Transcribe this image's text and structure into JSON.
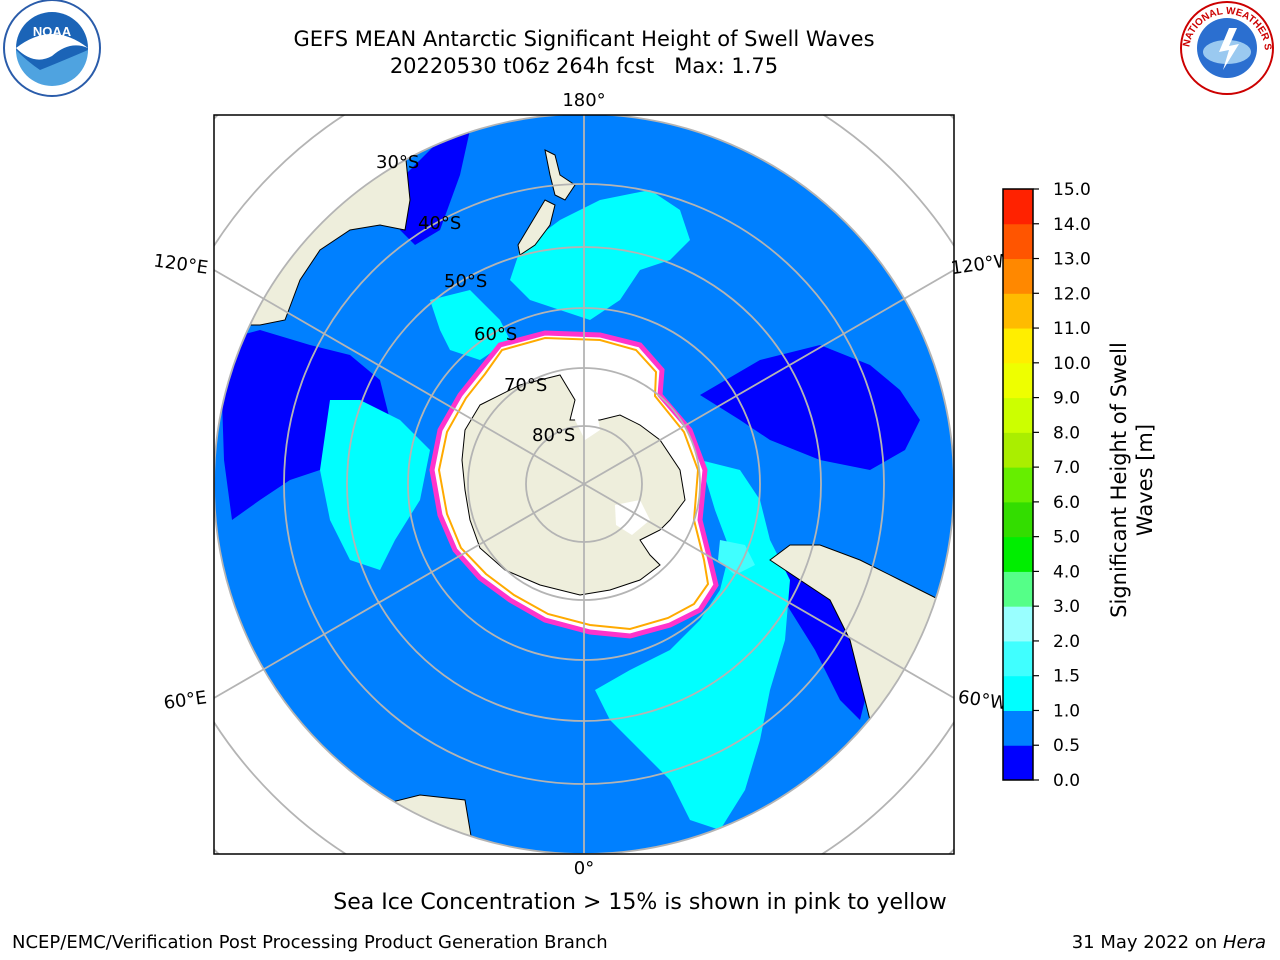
{
  "header": {
    "title_line1": "GEFS MEAN Antarctic Significant Height of Swell Waves",
    "title_line2": "20220530 t06z 264h fcst   Max: 1.75"
  },
  "map": {
    "projection": "south-polar-stereographic",
    "longitude_labels": {
      "top": "180°",
      "upper_left": "120°E",
      "upper_right": "120°W",
      "lower_left": "60°E",
      "lower_right": "60°W",
      "bottom": "0°"
    },
    "latitude_labels": [
      "30°S",
      "40°S",
      "50°S",
      "60°S",
      "70°S",
      "80°S"
    ],
    "colors": {
      "ocean_base": "#0080ff",
      "land": "#eeeedc",
      "sea_ice": "#ffffff",
      "ice_edge": [
        "#ff33cc",
        "#ffaa00",
        "#ffff00"
      ],
      "graticule": "#b4b4b4"
    }
  },
  "colorbar": {
    "label": "Significant Height of Swell Waves [m]",
    "ticks": [
      "0.0",
      "0.5",
      "1.0",
      "1.5",
      "2.0",
      "3.0",
      "4.0",
      "5.0",
      "6.0",
      "7.0",
      "8.0",
      "9.0",
      "10.0",
      "11.0",
      "12.0",
      "13.0",
      "14.0",
      "15.0"
    ],
    "colors": [
      "#0000ff",
      "#0080ff",
      "#00ffff",
      "#40ffff",
      "#99ffff",
      "#55ff88",
      "#00ee00",
      "#33dd00",
      "#66ee00",
      "#aaee00",
      "#ccff00",
      "#eeff00",
      "#ffee00",
      "#ffbb00",
      "#ff8800",
      "#ff5500",
      "#ff2200"
    ]
  },
  "footer": {
    "ice_note": "Sea Ice Concentration > 15% is shown in pink to yellow",
    "credit": "NCEP/EMC/Verification Post Processing Product Generation Branch",
    "date": "31 May 2022 on ",
    "machine": "Hera"
  },
  "logos": {
    "left": "noaa-logo",
    "right": "national-weather-service-logo",
    "right_text": "NATIONAL WEATHER SERVICE"
  }
}
